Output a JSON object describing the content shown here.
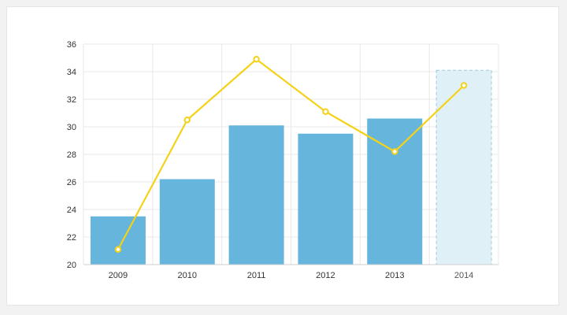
{
  "chart_data": {
    "type": "bar",
    "categories": [
      "2009",
      "2010",
      "2011",
      "2012",
      "2013",
      "2014"
    ],
    "series": [
      {
        "type": "bar",
        "values": [
          23.5,
          26.2,
          30.1,
          29.5,
          30.6,
          34.1
        ],
        "projected": [
          false,
          false,
          false,
          false,
          false,
          true
        ]
      },
      {
        "type": "line",
        "values": [
          21.1,
          30.5,
          34.9,
          31.1,
          28.2,
          33.0
        ]
      }
    ],
    "ylim": [
      20,
      36
    ],
    "yticks": [
      "20",
      "22",
      "24",
      "26",
      "28",
      "30",
      "32",
      "34",
      "36"
    ],
    "grid": true,
    "colors": {
      "bar": "#66b5dc",
      "projected_fill": "#e0f0f7",
      "projected_stroke": "#9ccbe0",
      "line": "#f4d21a",
      "marker_fill": "#ffffff",
      "grid": "#e8e8e8",
      "axis": "#cfcfcf"
    }
  }
}
